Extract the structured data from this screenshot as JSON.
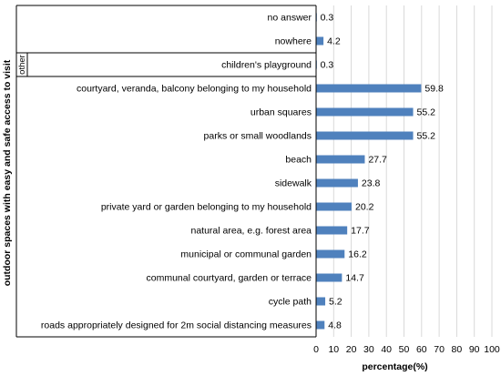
{
  "chart_data": {
    "type": "bar",
    "orientation": "horizontal",
    "categories": [
      "no answer",
      "nowhere",
      "children's playground",
      "courtyard, veranda, balcony belonging to my household",
      "urban squares",
      "parks or small woodlands",
      "beach",
      "sidewalk",
      "private yard or garden belonging to my household",
      "natural area, e.g. forest area",
      "municipal or communal garden",
      "communal courtyard, garden or terrace",
      "cycle path",
      "roads appropriately designed for 2m social distancing measures"
    ],
    "values": [
      0.3,
      4.2,
      0.3,
      59.8,
      55.2,
      55.2,
      27.7,
      23.8,
      20.2,
      17.7,
      16.2,
      14.7,
      5.2,
      4.8
    ],
    "value_labels": [
      "0.3",
      "4.2",
      "0.3",
      "59.8",
      "55.2",
      "55.2",
      "27.7",
      "23.8",
      "20.2",
      "17.7",
      "16.2",
      "14.7",
      "5.2",
      "4.8"
    ],
    "xlabel": "percentage(%)",
    "ylabel": "outdoor spaces with easy and safe access to visit",
    "group_label": "other",
    "xlim": [
      0,
      100
    ],
    "xticks": [
      "0",
      "10",
      "20",
      "30",
      "40",
      "50",
      "60",
      "70",
      "80",
      "90",
      "100"
    ],
    "grid": "vertical",
    "bar_color": "#4f81bd",
    "grid_color": "#d9d9d9"
  }
}
